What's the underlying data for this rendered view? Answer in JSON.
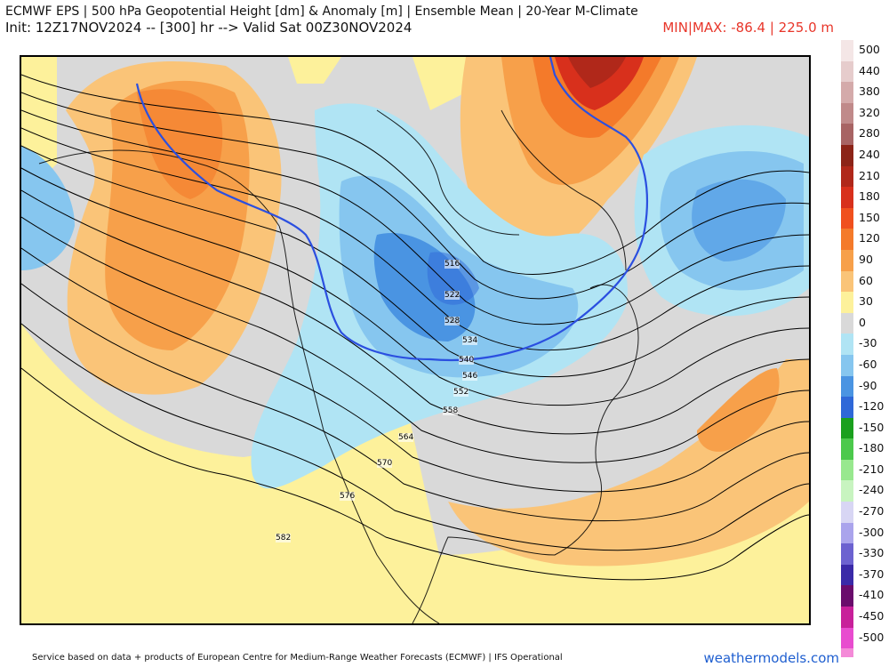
{
  "header": {
    "title": "ECMWF EPS | 500 hPa Geopotential Height [dm] & Anomaly [m] | Ensemble Mean | 20-Year M-Climate",
    "init_line": "Init: 12Z17NOV2024 -- [300] hr --> Valid Sat 00Z30NOV2024",
    "minmax": "MIN|MAX: -86.4 | 225.0 m"
  },
  "legend": {
    "items": [
      {
        "label": "500",
        "color": "#f4e6e6"
      },
      {
        "label": "440",
        "color": "#e6cccc"
      },
      {
        "label": "380",
        "color": "#d4aaaa"
      },
      {
        "label": "320",
        "color": "#c08a8a"
      },
      {
        "label": "280",
        "color": "#a86464"
      },
      {
        "label": "240",
        "color": "#8c2418"
      },
      {
        "label": "210",
        "color": "#b0281a"
      },
      {
        "label": "180",
        "color": "#d8301c"
      },
      {
        "label": "150",
        "color": "#f0501e"
      },
      {
        "label": "120",
        "color": "#f47a2a"
      },
      {
        "label": "90",
        "color": "#f7a04a"
      },
      {
        "label": "60",
        "color": "#fac478"
      },
      {
        "label": "30",
        "color": "#fdf19b"
      },
      {
        "label": "0",
        "color": "#d9d9d9"
      },
      {
        "label": "-30",
        "color": "#b0e4f4"
      },
      {
        "label": "-60",
        "color": "#86c6ef"
      },
      {
        "label": "-90",
        "color": "#4a94e2"
      },
      {
        "label": "-120",
        "color": "#2f68d8"
      },
      {
        "label": "-150",
        "color": "#1aa01e"
      },
      {
        "label": "-180",
        "color": "#4cc94c"
      },
      {
        "label": "-210",
        "color": "#98e88e"
      },
      {
        "label": "-240",
        "color": "#c8f4c0"
      },
      {
        "label": "-270",
        "color": "#d8d6f4"
      },
      {
        "label": "-300",
        "color": "#aaa4ec"
      },
      {
        "label": "-330",
        "color": "#6c62d0"
      },
      {
        "label": "-370",
        "color": "#3a2aa8"
      },
      {
        "label": "-410",
        "color": "#6a0c6c"
      },
      {
        "label": "-450",
        "color": "#c8209a"
      },
      {
        "label": "-500",
        "color": "#e84ccf"
      }
    ],
    "extra_swatch": "#f48ad8"
  },
  "contour_labels": [
    "516",
    "522",
    "528",
    "534",
    "540",
    "546",
    "552",
    "558",
    "564",
    "570",
    "576",
    "582"
  ],
  "footer": {
    "attribution": "Service based on data + products of European Centre for Medium-Range Weather Forecasts (ECMWF) | IFS Operational",
    "brand": "weathermodels.com"
  }
}
